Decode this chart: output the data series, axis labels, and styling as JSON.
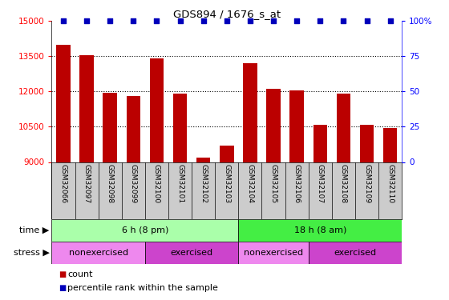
{
  "title": "GDS894 / 1676_s_at",
  "samples": [
    "GSM32066",
    "GSM32097",
    "GSM32098",
    "GSM32099",
    "GSM32100",
    "GSM32101",
    "GSM32102",
    "GSM32103",
    "GSM32104",
    "GSM32105",
    "GSM32106",
    "GSM32107",
    "GSM32108",
    "GSM32109",
    "GSM32110"
  ],
  "counts": [
    14000,
    13550,
    11950,
    11800,
    13400,
    11900,
    9200,
    9700,
    13200,
    12100,
    12050,
    10600,
    11900,
    10600,
    10450
  ],
  "bar_color": "#bb0000",
  "percentile_color": "#0000bb",
  "ylim": [
    9000,
    15000
  ],
  "yticks": [
    9000,
    10500,
    12000,
    13500,
    15000
  ],
  "right_yticks": [
    0,
    25,
    50,
    75,
    100
  ],
  "right_ylim": [
    0,
    100
  ],
  "time_row": [
    {
      "label": "6 h (8 pm)",
      "start": 0,
      "end": 8,
      "color": "#aaffaa"
    },
    {
      "label": "18 h (8 am)",
      "start": 8,
      "end": 15,
      "color": "#44ee44"
    }
  ],
  "stress_row": [
    {
      "label": "nonexercised",
      "start": 0,
      "end": 4,
      "color": "#ee88ee"
    },
    {
      "label": "exercised",
      "start": 4,
      "end": 8,
      "color": "#cc44cc"
    },
    {
      "label": "nonexercised",
      "start": 8,
      "end": 11,
      "color": "#ee88ee"
    },
    {
      "label": "exercised",
      "start": 11,
      "end": 15,
      "color": "#cc44cc"
    }
  ],
  "label_row_color": "#cccccc",
  "legend_count_label": "count",
  "legend_pct_label": "percentile rank within the sample"
}
